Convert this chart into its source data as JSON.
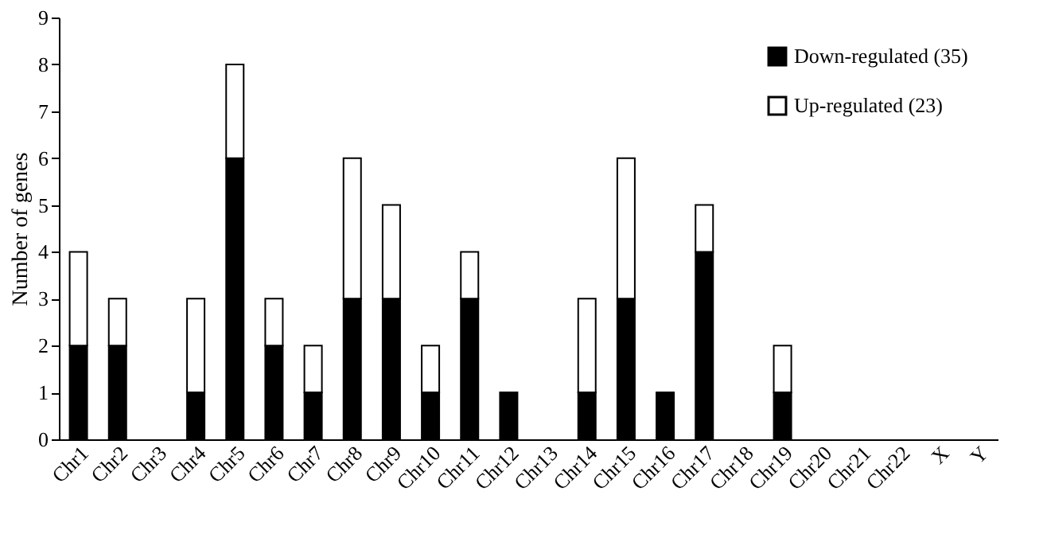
{
  "chart_data": {
    "type": "bar",
    "stacked": true,
    "ylabel": "Number of genes",
    "categories": [
      "Chr1",
      "Chr2",
      "Chr3",
      "Chr4",
      "Chr5",
      "Chr6",
      "Chr7",
      "Chr8",
      "Chr9",
      "Chr10",
      "Chr11",
      "Chr12",
      "Chr13",
      "Chr14",
      "Chr15",
      "Chr16",
      "Chr17",
      "Chr18",
      "Chr19",
      "Chr20",
      "Chr21",
      "Chr22",
      "X",
      "Y"
    ],
    "series": [
      {
        "name": "Down-regulated (35)",
        "color": "#000000",
        "values": [
          2,
          2,
          0,
          1,
          6,
          2,
          1,
          3,
          3,
          1,
          3,
          1,
          0,
          1,
          3,
          1,
          4,
          0,
          1,
          0,
          0,
          0,
          0,
          0
        ]
      },
      {
        "name": "Up-regulated (23)",
        "color": "#ffffff",
        "values": [
          2,
          1,
          0,
          2,
          2,
          1,
          1,
          3,
          2,
          1,
          1,
          0,
          0,
          2,
          3,
          0,
          1,
          0,
          1,
          0,
          0,
          0,
          0,
          0
        ]
      }
    ],
    "ylim": [
      0,
      9
    ],
    "yticks": [
      0,
      1,
      2,
      3,
      4,
      5,
      6,
      7,
      8,
      9
    ],
    "grid": false,
    "legend": "top right"
  }
}
